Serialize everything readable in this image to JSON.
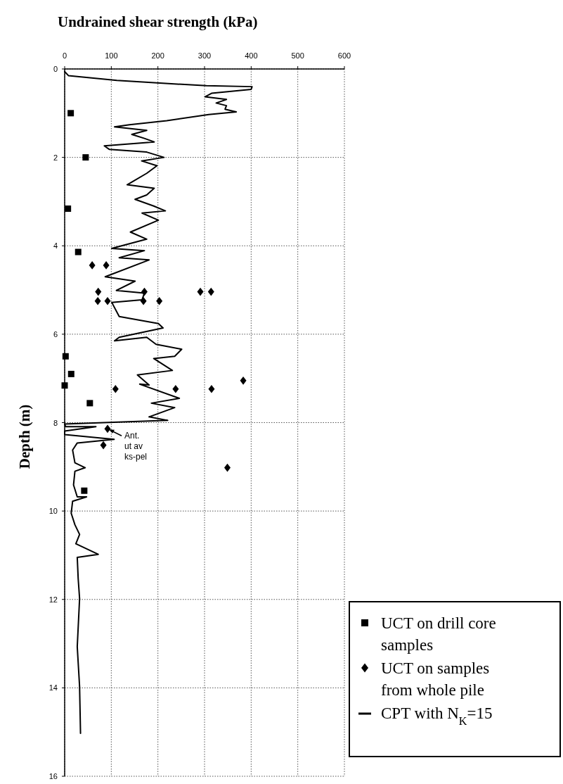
{
  "chart_data": {
    "type": "scatter",
    "xlabel": "Undrained shear strength (kPa)",
    "ylabel": "Depth (m)",
    "xlim": [
      0,
      600
    ],
    "xticks": [
      0,
      100,
      200,
      300,
      400,
      500,
      600
    ],
    "ylim": [
      16,
      0
    ],
    "yticks": [
      0,
      2,
      4,
      6,
      8,
      10,
      12,
      14,
      16
    ],
    "grid": true,
    "legend": "bottom right",
    "line_style": "solid",
    "annotations": [
      {
        "text": "Ant. ut av ks-pel",
        "x": 92,
        "y": 8.14
      }
    ],
    "series": [
      {
        "name": "UCT on drill core samples",
        "marker": "square",
        "color": "#000000",
        "x": [
          13,
          45,
          7,
          29,
          2,
          14,
          0,
          54,
          42
        ],
        "values": [
          1.0,
          2.0,
          3.16,
          4.14,
          6.5,
          6.9,
          7.16,
          7.56,
          9.54
        ]
      },
      {
        "name": "UCT on samples from whole pile",
        "marker": "diamond",
        "color": "#000000",
        "x": [
          59,
          89,
          72,
          171,
          291,
          314,
          71,
          92,
          169,
          203,
          109,
          238,
          315,
          383,
          92,
          83,
          349
        ],
        "values": [
          4.44,
          4.44,
          5.04,
          5.04,
          5.04,
          5.04,
          5.25,
          5.25,
          5.25,
          5.25,
          7.24,
          7.24,
          7.24,
          7.05,
          8.14,
          8.51,
          9.02
        ]
      },
      {
        "name": "CPT with N$_{K}$=15",
        "type": "line",
        "marker": "none",
        "color": "#000000",
        "x": [
          0,
          8,
          112,
          304,
          402,
          400,
          315,
          301,
          347,
          325,
          347,
          344,
          368,
          309,
          219,
          139,
          107,
          176,
          144,
          171,
          192,
          85,
          96,
          176,
          213,
          165,
          198,
          176,
          134,
          192,
          176,
          151,
          191,
          216,
          166,
          201,
          141,
          176,
          101,
          171,
          117,
          181,
          87,
          151,
          111,
          171,
          166,
          101,
          117,
          201,
          211,
          117,
          107,
          176,
          196,
          251,
          236,
          191,
          231,
          156,
          181,
          161,
          246,
          186,
          236,
          181,
          221,
          0,
          2,
          67,
          0,
          0,
          106,
          27,
          17,
          22,
          44,
          22,
          19,
          27,
          47,
          17,
          14,
          22,
          32,
          24,
          72,
          27,
          29,
          32,
          27,
          32,
          34
        ],
        "values": [
          0.06,
          0.15,
          0.26,
          0.38,
          0.4,
          0.46,
          0.55,
          0.63,
          0.69,
          0.77,
          0.83,
          0.91,
          0.97,
          1.03,
          1.17,
          1.26,
          1.31,
          1.39,
          1.48,
          1.57,
          1.65,
          1.74,
          1.82,
          1.88,
          2.0,
          2.08,
          2.19,
          2.36,
          2.62,
          2.7,
          2.85,
          2.95,
          3.1,
          3.21,
          3.26,
          3.42,
          3.69,
          3.85,
          4.06,
          4.11,
          4.27,
          4.32,
          4.7,
          4.8,
          5.01,
          5.07,
          5.22,
          5.28,
          5.6,
          5.76,
          5.86,
          6.07,
          6.15,
          6.07,
          6.23,
          6.34,
          6.5,
          6.55,
          6.82,
          6.92,
          7.15,
          7.13,
          7.45,
          7.56,
          7.66,
          7.87,
          7.95,
          8.03,
          8.09,
          8.09,
          8.19,
          8.27,
          8.38,
          8.46,
          8.62,
          8.91,
          9.02,
          9.1,
          9.41,
          9.68,
          9.68,
          9.78,
          10.05,
          10.31,
          10.53,
          10.74,
          10.98,
          11.05,
          11.53,
          11.98,
          13.07,
          13.97,
          15.03
        ]
      }
    ]
  }
}
